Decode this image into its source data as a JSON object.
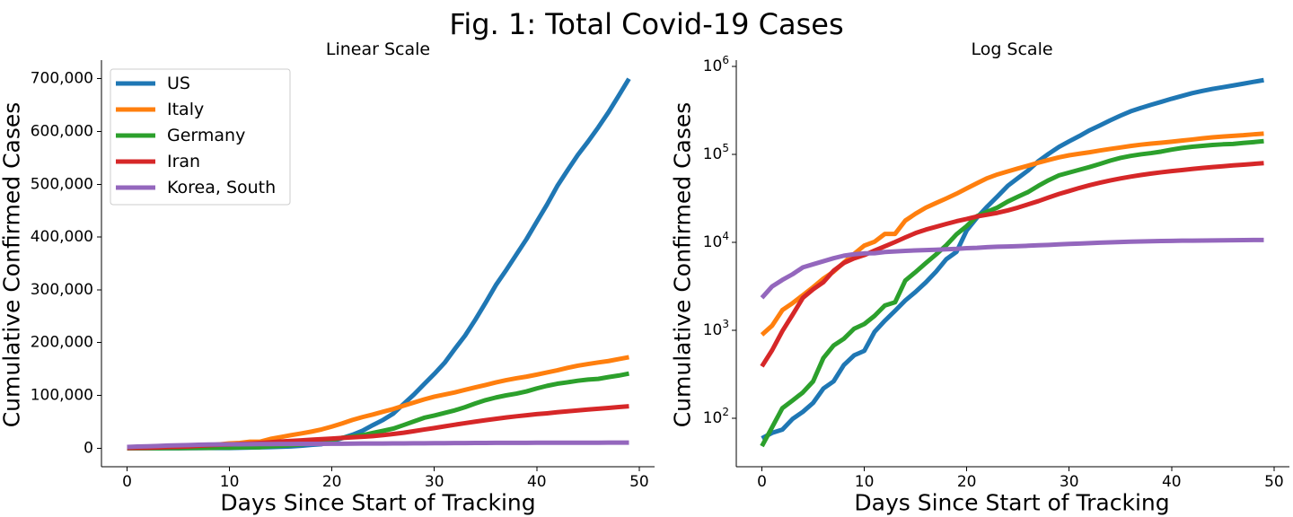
{
  "figure": {
    "title": "Fig. 1: Total Covid-19 Cases"
  },
  "colors": {
    "US": "#1f77b4",
    "Italy": "#ff7f0e",
    "Germany": "#2ca02c",
    "Iran": "#d62728",
    "Korea, South": "#9467bd"
  },
  "chart_data": [
    {
      "type": "line",
      "title": "Linear Scale",
      "xlabel": "Days Since Start of Tracking",
      "ylabel": "Cumulative Confirmed Cases",
      "xlim": [
        -2.5,
        51.5
      ],
      "ylim": [
        -35000,
        735000
      ],
      "xticks": [
        0,
        10,
        20,
        30,
        40,
        50
      ],
      "yticks": [
        0,
        100000,
        200000,
        300000,
        400000,
        500000,
        600000,
        700000
      ],
      "ytick_labels": [
        "0",
        "100,000",
        "200,000",
        "300,000",
        "400,000",
        "500,000",
        "600,000",
        "700,000"
      ],
      "yscale": "linear",
      "legend": {
        "placement": "upper-left",
        "entries": [
          "US",
          "Italy",
          "Germany",
          "Iran",
          "Korea, South"
        ]
      }
    },
    {
      "type": "line",
      "title": "Log Scale",
      "xlabel": "Days Since Start of Tracking",
      "ylabel": "Cumulative Confirmed Cases",
      "xlim": [
        -2.5,
        51.5
      ],
      "ylim": [
        28,
        1180000
      ],
      "xticks": [
        0,
        10,
        20,
        30,
        40,
        50
      ],
      "yticks": [
        100,
        1000,
        10000,
        100000,
        1000000
      ],
      "ytick_labels": [
        {
          "base": "10",
          "exp": "2"
        },
        {
          "base": "10",
          "exp": "3"
        },
        {
          "base": "10",
          "exp": "4"
        },
        {
          "base": "10",
          "exp": "5"
        },
        {
          "base": "10",
          "exp": "6"
        }
      ],
      "yscale": "log"
    }
  ],
  "series_data": {
    "x": [
      0,
      1,
      2,
      3,
      4,
      5,
      6,
      7,
      8,
      9,
      10,
      11,
      12,
      13,
      14,
      15,
      16,
      17,
      18,
      19,
      20,
      21,
      22,
      23,
      24,
      25,
      26,
      27,
      28,
      29,
      30,
      31,
      32,
      33,
      34,
      35,
      36,
      37,
      38,
      39,
      40,
      41,
      42,
      43,
      44,
      45,
      46,
      47,
      48,
      49
    ],
    "series": [
      {
        "name": "US",
        "values": [
          59,
          68,
          74,
          98,
          118,
          149,
          217,
          262,
          402,
          518,
          583,
          959,
          1281,
          1663,
          2179,
          2727,
          3499,
          4632,
          6421,
          7786,
          13680,
          19101,
          25493,
          33276,
          43847,
          53740,
          65778,
          83836,
          101657,
          121478,
          140886,
          161807,
          188172,
          213372,
          243453,
          275586,
          308850,
          337072,
          366667,
          396223,
          429052,
          461437,
          496535,
          526396,
          555313,
          580619,
          607670,
          636350,
          667801,
          699706
        ]
      },
      {
        "name": "Italy",
        "values": [
          888,
          1128,
          1694,
          2036,
          2502,
          3089,
          3858,
          4636,
          5883,
          7375,
          9172,
          10149,
          12462,
          12462,
          17660,
          21157,
          24747,
          27980,
          31506,
          35713,
          41035,
          47021,
          53578,
          59138,
          63927,
          69176,
          74386,
          80589,
          86498,
          92472,
          97689,
          101739,
          105792,
          110574,
          115242,
          119827,
          124632,
          128948,
          132547,
          135586,
          139422,
          143626,
          147577,
          152271,
          156363,
          159516,
          162488,
          165155,
          168941,
          172434
        ]
      },
      {
        "name": "Germany",
        "values": [
          48,
          79,
          130,
          159,
          196,
          262,
          482,
          670,
          799,
          1040,
          1176,
          1457,
          1908,
          2078,
          3675,
          4585,
          5795,
          7272,
          9257,
          12327,
          15320,
          19848,
          22213,
          24873,
          29056,
          32986,
          37323,
          43938,
          50871,
          57695,
          62095,
          66885,
          71808,
          77872,
          84794,
          91159,
          96092,
          100123,
          103374,
          107663,
          113296,
          118181,
          122171,
          124908,
          127854,
          130072,
          131359,
          134753,
          137698,
          141397
        ]
      },
      {
        "name": "Iran",
        "values": [
          388,
          593,
          978,
          1501,
          2336,
          2922,
          3513,
          4747,
          5823,
          6566,
          7161,
          8042,
          9000,
          10075,
          11364,
          12729,
          13938,
          14991,
          16169,
          17361,
          18407,
          19644,
          20610,
          21638,
          23049,
          24811,
          27017,
          29406,
          32332,
          35408,
          38309,
          41495,
          44605,
          47593,
          50468,
          53183,
          55743,
          58226,
          60500,
          62589,
          64586,
          66220,
          68192,
          70029,
          71686,
          73303,
          74877,
          76389,
          77995,
          79494
        ]
      },
      {
        "name": "Korea, South",
        "values": [
          2337,
          3150,
          3736,
          4335,
          5186,
          5621,
          6088,
          6593,
          7041,
          7314,
          7478,
          7513,
          7755,
          7869,
          7979,
          8086,
          8162,
          8236,
          8320,
          8413,
          8565,
          8652,
          8799,
          8897,
          8961,
          9037,
          9137,
          9241,
          9332,
          9478,
          9583,
          9661,
          9786,
          9887,
          9976,
          10062,
          10156,
          10237,
          10284,
          10331,
          10384,
          10423,
          10450,
          10480,
          10512,
          10537,
          10564,
          10591,
          10613,
          10635
        ]
      }
    ]
  }
}
